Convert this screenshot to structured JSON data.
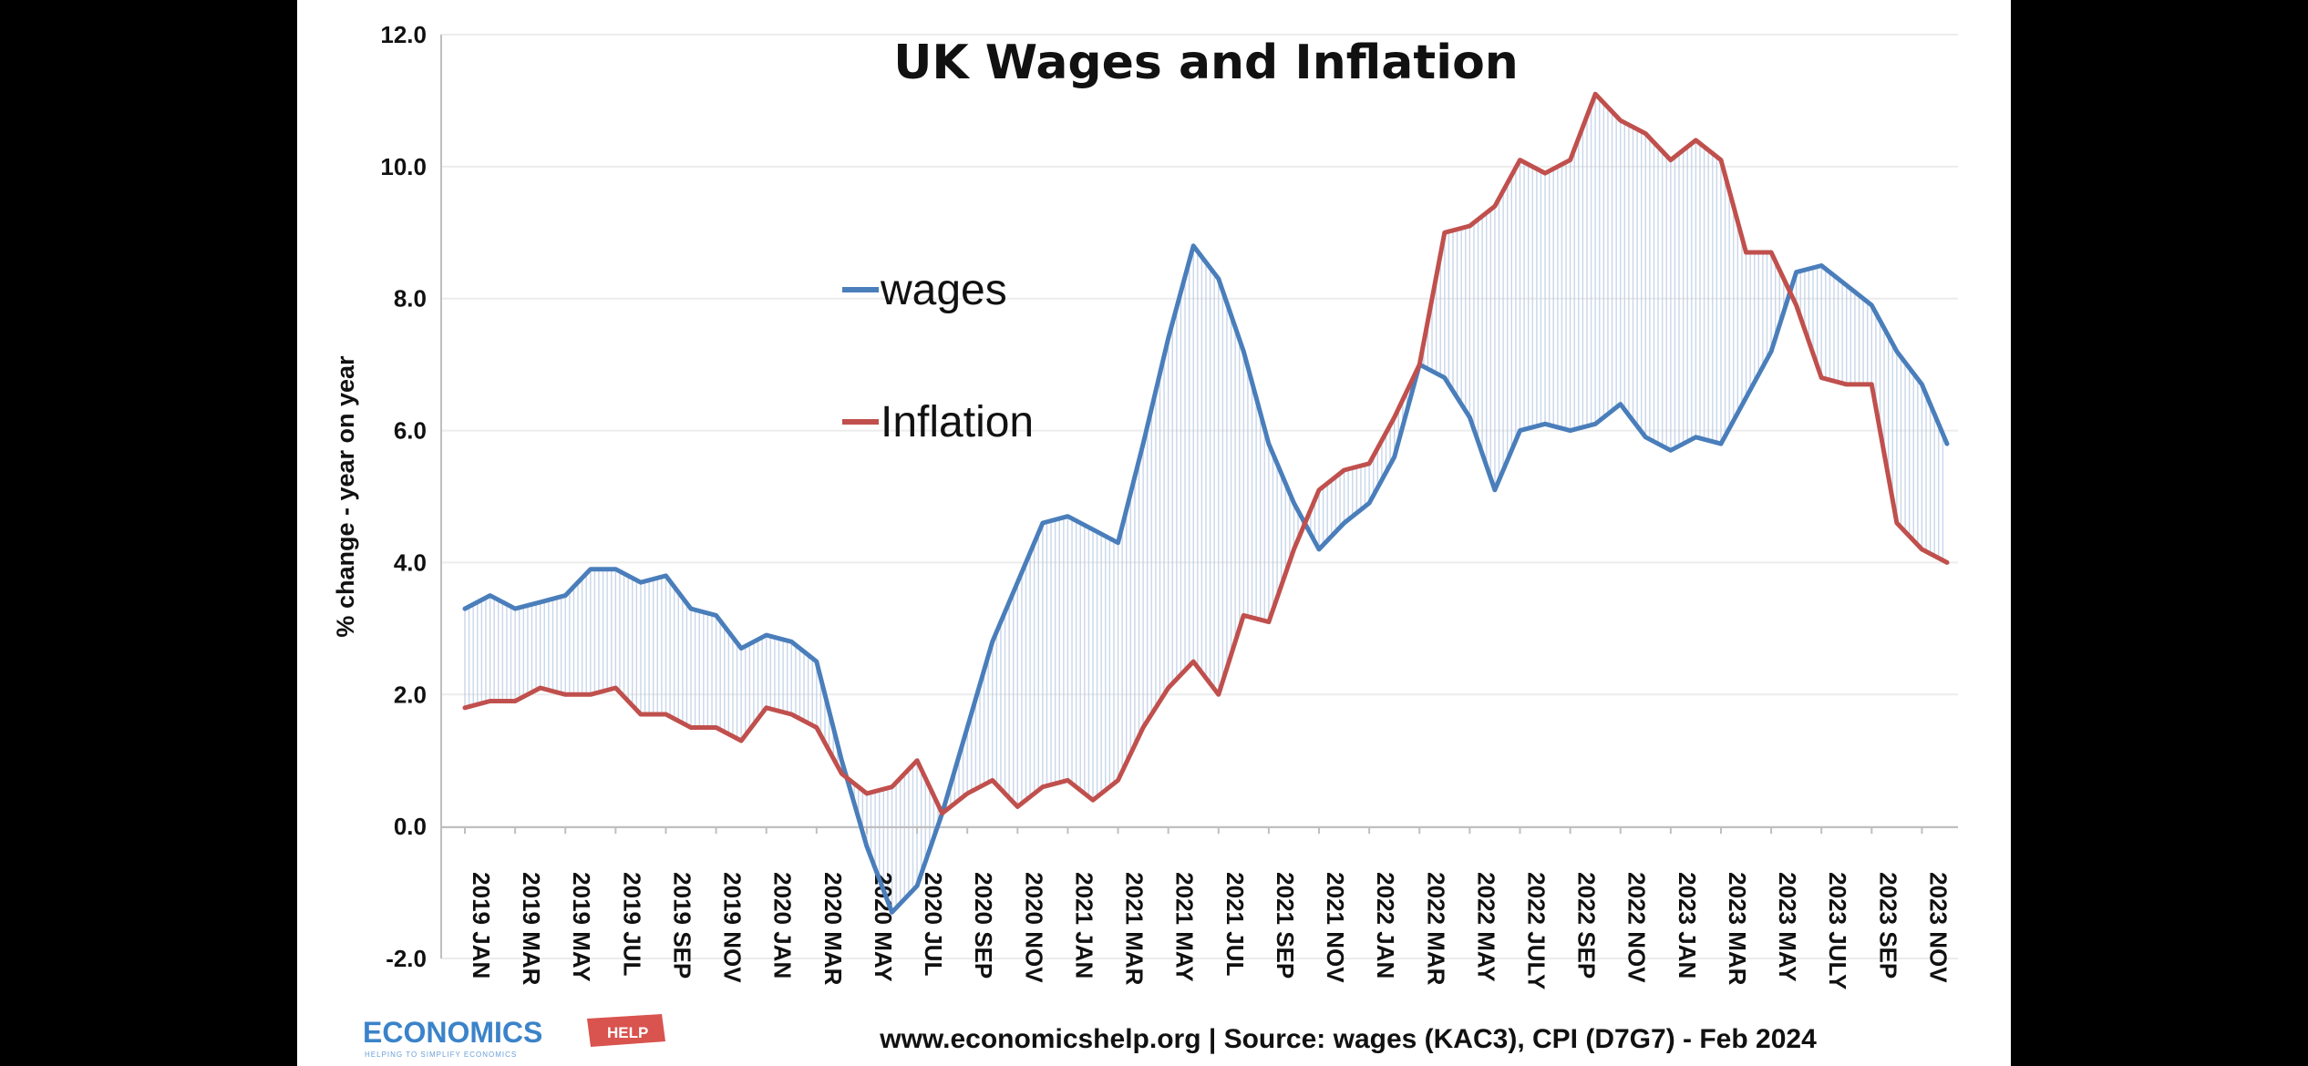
{
  "chart_data": {
    "type": "line",
    "title": "UK Wages and Inflation",
    "ylabel": "% change  - year on year",
    "xlabel": "",
    "ylim": [
      -2.0,
      12.0
    ],
    "y_ticks": [
      "12.0",
      "10.0",
      "8.0",
      "6.0",
      "4.0",
      "2.0",
      "0.0",
      "-2.0"
    ],
    "grid": "horizontal",
    "legend_position": "center-left",
    "categories": [
      "2019 JAN",
      "2019 FEB",
      "2019 MAR",
      "2019 APR",
      "2019 MAY",
      "2019 JUN",
      "2019 JUL",
      "2019 AUG",
      "2019 SEP",
      "2019 OCT",
      "2019 NOV",
      "2019 DEC",
      "2020 JAN",
      "2020 FEB",
      "2020 MAR",
      "2020 APR",
      "2020 MAY",
      "2020 JUN",
      "2020 JUL",
      "2020 AUG",
      "2020 SEP",
      "2020 OCT",
      "2020 NOV",
      "2020 DEC",
      "2021 JAN",
      "2021 FEB",
      "2021 MAR",
      "2021 APR",
      "2021 MAY",
      "2021 JUN",
      "2021 JUL",
      "2021 AUG",
      "2021 SEP",
      "2021 OCT",
      "2021 NOV",
      "2021 DEC",
      "2022 JAN",
      "2022 FEB",
      "2022 MAR",
      "2022 APR",
      "2022 MAY",
      "2022 JUN",
      "2022 JULY",
      "2022 AUG",
      "2022 SEP",
      "2022 OCT",
      "2022 NOV",
      "2022 DEC",
      "2023 JAN",
      "2023 FEB",
      "2023 MAR",
      "2023 APR",
      "2023 MAY",
      "2023 JUN",
      "2023 JULY",
      "2023 AUG",
      "2023 SEP",
      "2023 OCT",
      "2023 NOV",
      "2023 DEC"
    ],
    "x_tick_labels": [
      "2019 JAN",
      "2019 MAR",
      "2019 MAY",
      "2019 JUL",
      "2019 SEP",
      "2019 NOV",
      "2020 JAN",
      "2020 MAR",
      "2020 MAY",
      "2020 JUL",
      "2020 SEP",
      "2020 NOV",
      "2021 JAN",
      "2021 MAR",
      "2021 MAY",
      "2021 JUL",
      "2021 SEP",
      "2021 NOV",
      "2022 JAN",
      "2022 MAR",
      "2022 MAY",
      "2022 JULY",
      "2022 SEP",
      "2022 NOV",
      "2023 JAN",
      "2023 MAR",
      "2023 MAY",
      "2023 JULY",
      "2023 SEP",
      "2023 NOV"
    ],
    "series": [
      {
        "name": "wages",
        "color": "#4a7ebb",
        "values": [
          3.3,
          3.5,
          3.3,
          3.4,
          3.5,
          3.9,
          3.9,
          3.7,
          3.8,
          3.3,
          3.2,
          2.7,
          2.9,
          2.8,
          2.5,
          1.0,
          -0.3,
          -1.3,
          -0.9,
          0.2,
          1.5,
          2.8,
          3.7,
          4.6,
          4.7,
          4.5,
          4.3,
          5.8,
          7.4,
          8.8,
          8.3,
          7.2,
          5.8,
          4.9,
          4.2,
          4.6,
          4.9,
          5.6,
          7.0,
          6.8,
          6.2,
          5.1,
          6.0,
          6.1,
          6.0,
          6.1,
          6.4,
          5.9,
          5.7,
          5.9,
          5.8,
          6.5,
          7.2,
          8.4,
          8.5,
          8.2,
          7.9,
          7.2,
          6.7,
          5.8
        ]
      },
      {
        "name": "Inflation",
        "color": "#c0504d",
        "values": [
          1.8,
          1.9,
          1.9,
          2.1,
          2.0,
          2.0,
          2.1,
          1.7,
          1.7,
          1.5,
          1.5,
          1.3,
          1.8,
          1.7,
          1.5,
          0.8,
          0.5,
          0.6,
          1.0,
          0.2,
          0.5,
          0.7,
          0.3,
          0.6,
          0.7,
          0.4,
          0.7,
          1.5,
          2.1,
          2.5,
          2.0,
          3.2,
          3.1,
          4.2,
          5.1,
          5.4,
          5.5,
          6.2,
          7.0,
          9.0,
          9.1,
          9.4,
          10.1,
          9.9,
          10.1,
          11.1,
          10.7,
          10.5,
          10.1,
          10.4,
          10.1,
          8.7,
          8.7,
          7.9,
          6.8,
          6.7,
          6.7,
          4.6,
          4.2,
          4.0
        ]
      }
    ],
    "legend": [
      {
        "name": "wages",
        "color": "#4a7ebb"
      },
      {
        "name": "Inflation",
        "color": "#c0504d"
      }
    ],
    "gap_hatch_color": "#b7c9e2",
    "footer_source": "www.economicshelp.org | Source: wages (KAC3), CPI (D7G7) - Feb 2024"
  },
  "logo": {
    "text": "ECONOMICS",
    "badge": "HELP",
    "tagline": "HELPING TO SIMPLIFY ECONOMICS",
    "color": "#3b83c9",
    "badge_color": "#d9534f"
  }
}
